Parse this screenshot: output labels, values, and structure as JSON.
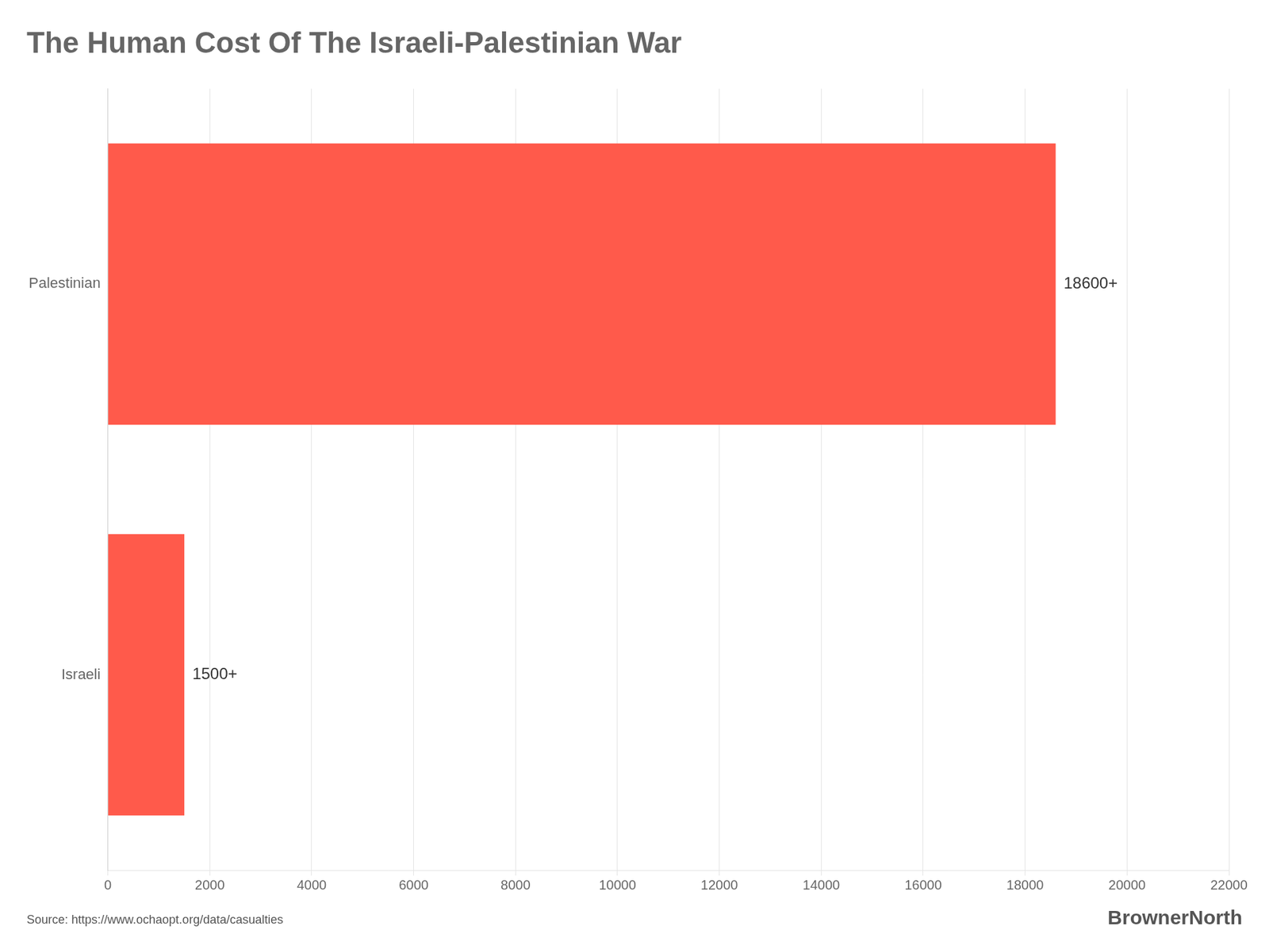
{
  "chart_data": {
    "type": "bar",
    "orientation": "horizontal",
    "title": "The Human Cost Of The Israeli-Palestinian War",
    "categories": [
      "Palestinian",
      "Israeli"
    ],
    "values": [
      18600,
      1500
    ],
    "value_labels": [
      "18600+",
      "1500+"
    ],
    "data_labels": true,
    "color": "#FF5A4B",
    "xlim": [
      0,
      22000
    ],
    "xticks": [
      0,
      2000,
      4000,
      6000,
      8000,
      10000,
      12000,
      14000,
      16000,
      18000,
      20000,
      22000
    ],
    "grid": true,
    "annotations": [
      "Source: https://www.ochaopt.org/data/casualties",
      "BrownerNorth"
    ]
  }
}
